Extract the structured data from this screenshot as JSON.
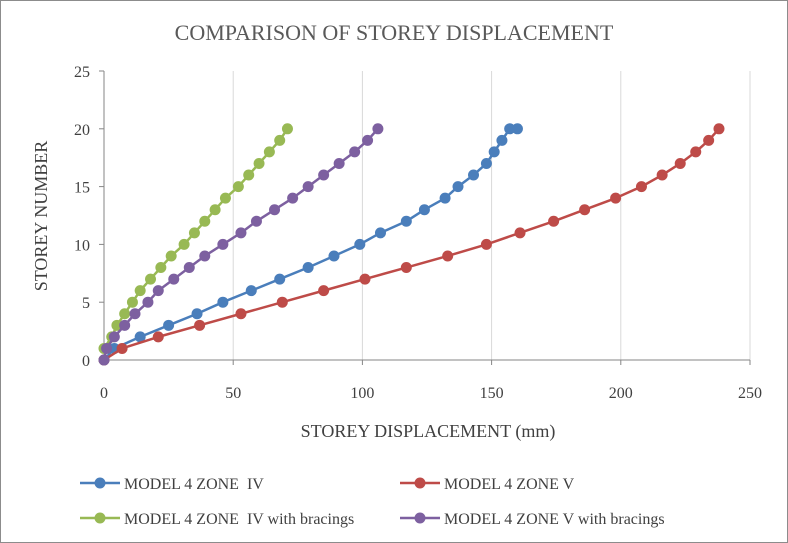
{
  "chart_data": {
    "type": "line",
    "title": "COMPARISON OF STOREY DISPLACEMENT",
    "xlabel": "STOREY DISPLACEMENT (mm)",
    "ylabel": "STOREY NUMBER",
    "xlim": [
      0,
      250
    ],
    "ylim": [
      0,
      25
    ],
    "xticks": [
      0,
      50,
      100,
      150,
      200,
      250
    ],
    "yticks": [
      0,
      5,
      10,
      15,
      20,
      25
    ],
    "grid": "vertical",
    "legend_position": "bottom",
    "series": [
      {
        "name": "MODEL 4 ZONE  IV",
        "color": "#4a7ebb",
        "x": [
          0,
          4,
          14,
          25,
          36,
          46,
          57,
          68,
          79,
          89,
          99,
          107,
          117,
          124,
          132,
          137,
          143,
          148,
          151,
          154,
          157,
          160
        ],
        "y": [
          0,
          1,
          2,
          3,
          4,
          5,
          6,
          7,
          8,
          9,
          10,
          11,
          12,
          13,
          14,
          15,
          16,
          17,
          18,
          19,
          20,
          20
        ]
      },
      {
        "name": "MODEL 4 ZONE V",
        "color": "#be4b48",
        "x": [
          0,
          7,
          21,
          37,
          53,
          69,
          85,
          101,
          117,
          133,
          148,
          161,
          174,
          186,
          198,
          208,
          216,
          223,
          229,
          234,
          238
        ],
        "y": [
          0,
          1,
          2,
          3,
          4,
          5,
          6,
          7,
          8,
          9,
          10,
          11,
          12,
          13,
          14,
          15,
          16,
          17,
          18,
          19,
          20
        ]
      },
      {
        "name": "MODEL 4 ZONE  IV with bracings",
        "color": "#98b954",
        "x": [
          0,
          3,
          5,
          8,
          11,
          14,
          18,
          22,
          26,
          31,
          35,
          39,
          43,
          47,
          52,
          56,
          60,
          64,
          68,
          71
        ],
        "y": [
          1,
          2,
          3,
          4,
          5,
          6,
          7,
          8,
          9,
          10,
          11,
          12,
          13,
          14,
          15,
          16,
          17,
          18,
          19,
          20
        ]
      },
      {
        "name": "MODEL 4 ZONE V with bracings",
        "color": "#7d60a0",
        "x": [
          0,
          1,
          4,
          8,
          12,
          17,
          21,
          27,
          33,
          39,
          46,
          53,
          59,
          66,
          73,
          79,
          85,
          91,
          97,
          102,
          106
        ],
        "y": [
          0,
          1,
          2,
          3,
          4,
          5,
          6,
          7,
          8,
          9,
          10,
          11,
          12,
          13,
          14,
          15,
          16,
          17,
          18,
          19,
          20
        ]
      }
    ]
  }
}
